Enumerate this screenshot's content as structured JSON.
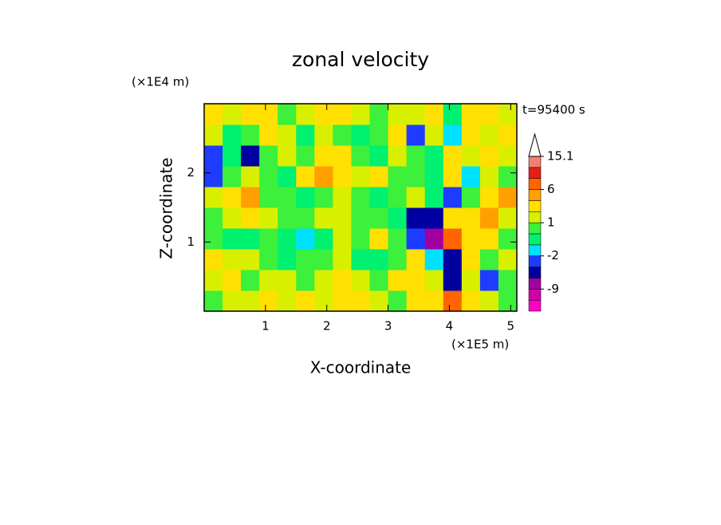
{
  "chart_data": {
    "type": "contour",
    "title": "zonal velocity",
    "x_label": "X-coordinate",
    "y_label": "Z-coordinate",
    "x_unit": "(×1E5 m)",
    "y_unit": "(×1E4 m)",
    "annotation": "t=95400 s",
    "xlim": [
      0,
      5.1
    ],
    "ylim": [
      0,
      3
    ],
    "xticks": [
      1,
      2,
      3,
      4,
      5
    ],
    "yticks": [
      1,
      2
    ],
    "z": [
      [
        0.5,
        1,
        1,
        2,
        1,
        2,
        1,
        3,
        2,
        1,
        0.5,
        2,
        3,
        7,
        2,
        1,
        0.5
      ],
      [
        1,
        2,
        0.5,
        1,
        1,
        0.5,
        1,
        2,
        1,
        0.5,
        2,
        3,
        1,
        -6,
        1,
        -4,
        0.5
      ],
      [
        2,
        1,
        1,
        0.5,
        -1,
        0.5,
        0.5,
        1,
        -1,
        -1,
        0.5,
        2,
        -2,
        -5,
        2,
        0.5,
        1
      ],
      [
        0.5,
        -1,
        -1,
        0.5,
        -1,
        -2,
        -1,
        1,
        0.5,
        2,
        0.5,
        -3,
        -7,
        6,
        3,
        2,
        0.5
      ],
      [
        0.5,
        1,
        2,
        1,
        0.5,
        0.5,
        1,
        1,
        0.5,
        0.5,
        -1,
        -5,
        -6,
        3,
        2,
        5,
        1
      ],
      [
        1,
        3,
        4,
        0.5,
        0.5,
        -1,
        0.5,
        1,
        0.5,
        -1,
        0.5,
        1,
        -1,
        -3,
        0.5,
        2,
        4
      ],
      [
        -4,
        0.5,
        1,
        0.5,
        -1,
        3,
        4,
        3,
        1,
        2,
        0.5,
        0.5,
        -1,
        2,
        -2,
        1,
        0.5
      ],
      [
        -3,
        -1,
        -5,
        0.5,
        1,
        0.5,
        2,
        2,
        0.5,
        -1,
        1,
        0.5,
        -1,
        3,
        1,
        2,
        1
      ],
      [
        1,
        -1,
        0.5,
        2,
        1,
        -0.5,
        1,
        0.5,
        -1,
        0.5,
        2,
        -3,
        1,
        -2,
        2,
        1,
        2
      ],
      [
        2,
        1,
        2,
        2,
        0.5,
        1,
        3,
        2,
        1,
        0.5,
        1,
        1,
        2,
        -1,
        3,
        2,
        1
      ]
    ],
    "colorbar": {
      "levels": [
        -15,
        -12,
        -9,
        -6,
        -4,
        -2,
        -1,
        0,
        1,
        2,
        4,
        6,
        9,
        12,
        15.1
      ],
      "colors": [
        "#ff00c8",
        "#d200a8",
        "#a000a0",
        "#0000a0",
        "#1e3cff",
        "#00e0ff",
        "#00f070",
        "#3cf03c",
        "#d8f000",
        "#ffe000",
        "#ffa000",
        "#ff6400",
        "#e61e14",
        "#f08070",
        "#f8b4b4"
      ],
      "ticks": [
        15.1,
        6,
        1,
        -2,
        -9
      ],
      "over_color": "#ffffff"
    }
  }
}
